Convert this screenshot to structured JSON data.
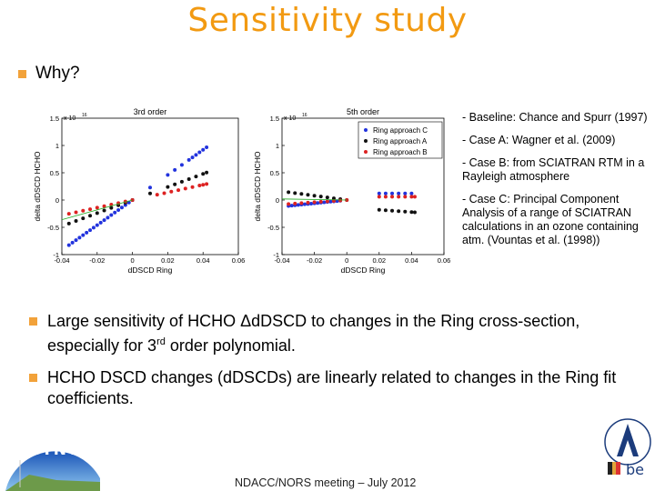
{
  "slide": {
    "title": "Sensitivity study",
    "why": "Why?",
    "notes": [
      "- Baseline: Chance and Spurr (1997)",
      "- Case A: Wagner et al. (2009)",
      "- Case B: from SCIATRAN RTM in a Rayleigh atmosphere",
      "- Case C: Principal Component Analysis of a range of SCIATRAN calculations in an ozone containing atm. (Vountas et al. (1998))"
    ],
    "bullet1_pre": "Large sensitivity of HCHO Δd",
    "bullet1_mid": "DSCD to changes in the Ring cross-section, especially for 3",
    "bullet1_sup": "rd",
    "bullet1_post": " order polynomial.",
    "bullet2": "HCHO DSCD changes (dDSCDs) are linearly related to changes in the Ring fit coefficients.",
    "footer": "NDACC/NORS meeting – July 2012",
    "logo_left_text": "CINDI",
    "logo_right_text": "be"
  },
  "colors": {
    "title": "#f29a12",
    "bullet": "#f2a23a",
    "seriesC": "#2233dd",
    "seriesA": "#111111",
    "seriesB": "#dd2222",
    "fit": "#22aa22"
  },
  "chart_data": [
    {
      "type": "scatter",
      "title": "3rd order",
      "xlabel": "dDSCD Ring",
      "ylabel": "delta dDSCD HCHO",
      "exponent": "x 10",
      "exponent_power": "16",
      "xlim": [
        -0.04,
        0.06
      ],
      "ylim": [
        -1,
        1.5
      ],
      "xticks": [
        "-0.04",
        "-0.02",
        "0",
        "0.02",
        "0.04",
        "0.06"
      ],
      "yticks": [
        "-1",
        "-0.5",
        "0",
        "0.5",
        "1",
        "1.5"
      ],
      "series": [
        {
          "name": "Ring approach C",
          "slope": 23,
          "x": [
            -0.036,
            -0.034,
            -0.032,
            -0.03,
            -0.028,
            -0.026,
            -0.024,
            -0.022,
            -0.02,
            -0.018,
            -0.016,
            -0.014,
            -0.012,
            -0.01,
            -0.008,
            -0.006,
            -0.004,
            -0.002,
            0,
            0.01,
            0.02,
            0.024,
            0.028,
            0.032,
            0.034,
            0.036,
            0.038,
            0.04,
            0.042
          ]
        },
        {
          "name": "Ring approach A",
          "slope": 12,
          "x": [
            -0.036,
            -0.032,
            -0.028,
            -0.024,
            -0.02,
            -0.016,
            -0.012,
            -0.008,
            -0.004,
            0,
            0.01,
            0.02,
            0.024,
            0.028,
            0.032,
            0.036,
            0.04,
            0.042
          ]
        },
        {
          "name": "Ring approach B",
          "slope": 7,
          "x": [
            -0.036,
            -0.032,
            -0.028,
            -0.024,
            -0.02,
            -0.016,
            -0.012,
            -0.008,
            -0.004,
            0,
            0.014,
            0.018,
            0.022,
            0.026,
            0.03,
            0.034,
            0.038,
            0.04,
            0.042
          ]
        }
      ]
    },
    {
      "type": "scatter",
      "title": "5th order",
      "xlabel": "dDSCD Ring",
      "ylabel": "delta dDSCD HCHO",
      "exponent": "x 10",
      "exponent_power": "16",
      "xlim": [
        -0.04,
        0.06
      ],
      "ylim": [
        -1,
        1.5
      ],
      "xticks": [
        "-0.04",
        "-0.02",
        "0",
        "0.02",
        "0.04",
        "0.06"
      ],
      "yticks": [
        "-1",
        "-0.5",
        "0",
        "0.5",
        "1",
        "1.5"
      ],
      "series": [
        {
          "name": "Ring approach C",
          "slope": 3,
          "x": [
            -0.036,
            -0.034,
            -0.032,
            -0.03,
            -0.028,
            -0.026,
            -0.024,
            -0.022,
            -0.02,
            -0.018,
            -0.016,
            -0.014,
            -0.012,
            -0.01,
            -0.008,
            -0.006,
            -0.004,
            0.02,
            0.024,
            0.028,
            0.032,
            0.036,
            0.04
          ]
        },
        {
          "name": "Ring approach A",
          "slope": -4,
          "x": [
            -0.036,
            -0.032,
            -0.028,
            -0.024,
            -0.02,
            -0.016,
            -0.012,
            -0.008,
            -0.004,
            0,
            0.02,
            0.024,
            0.028,
            0.032,
            0.036,
            0.04,
            0.042
          ]
        },
        {
          "name": "Ring approach B",
          "slope": 2,
          "x": [
            -0.036,
            -0.032,
            -0.028,
            -0.024,
            -0.02,
            -0.016,
            -0.012,
            -0.008,
            -0.004,
            0,
            0.02,
            0.024,
            0.028,
            0.032,
            0.036,
            0.04,
            0.042
          ]
        }
      ]
    }
  ]
}
